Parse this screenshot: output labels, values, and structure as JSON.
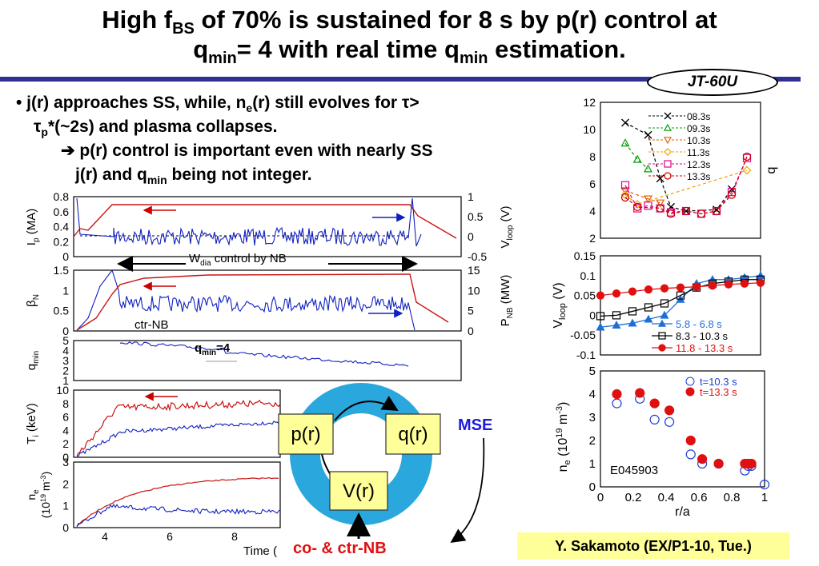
{
  "title": {
    "p1": "High f",
    "s1": "BS",
    "p2": " of 70% is sustained for 8 s by p(r) control at",
    "p3": "q",
    "s2": "min",
    "p4": "= 4 with real time q",
    "s3": "min",
    "p5": " estimation."
  },
  "badge": "JT-60U",
  "bullet": {
    "a1": "• j(r) approaches SS, while, n",
    "a2": "e",
    "a3": "(r) still evolves for τ>",
    "b1": "τ",
    "b2": "p",
    "b3": "*(~2s) and plasma collapses.",
    "c1": "➔ p(r) control is important even with nearly SS",
    "d1": "j(r) and q",
    "d2": "min",
    "d3": " being not integer."
  },
  "timetraces": {
    "wdia_label": "W",
    "wdia_sub": "dia",
    "wdia_rest": " control by NB",
    "ctr_nb": "ctr-NB",
    "qmin_annot": "q",
    "qmin_annot_sub": "min",
    "qmin_annot_rest": "=4",
    "xlabel": "Time (",
    "panels": [
      {
        "ylabel_left": "I",
        "ylabel_left_sub": "p",
        "ylabel_left_rest": " (MA)",
        "ylabel_right": "V",
        "ylabel_right_sub": "loop",
        "ylabel_right_rest": " (V)",
        "left_ticks": [
          "0.8",
          "0.6",
          "0.4",
          "0.2",
          "0"
        ],
        "right_ticks": [
          "1",
          "0.5",
          "0",
          "-0.5"
        ]
      },
      {
        "ylabel_left": "β",
        "ylabel_left_sub": "N",
        "ylabel_right": "P",
        "ylabel_right_sub": "NB",
        "ylabel_right_rest": " (MW)",
        "left_ticks": [
          "1.5",
          "1",
          "0.5",
          "0"
        ],
        "right_ticks": [
          "15",
          "10",
          "5",
          "0"
        ]
      },
      {
        "ylabel_left": "q",
        "ylabel_left_sub": "min",
        "left_ticks": [
          "5",
          "4",
          "3",
          "2",
          "1"
        ]
      },
      {
        "ylabel_left": "T",
        "ylabel_left_sub": "i",
        "ylabel_left_rest": " (keV)",
        "left_ticks": [
          "10",
          "8",
          "6",
          "4",
          "2",
          "0"
        ]
      },
      {
        "ylabel_left": "n",
        "ylabel_left_sub": "e",
        "ylabel_left_rest": " (10",
        "ylabel_left_sup": "19",
        "ylabel_left_end": " m",
        "ylabel_left_sup2": "-3",
        "ylabel_left_close": ")",
        "left_ticks": [
          "3",
          "2",
          "1",
          "0"
        ]
      }
    ],
    "x_ticks": [
      "4",
      "6",
      "8"
    ]
  },
  "diagram": {
    "p": "p(r)",
    "q": "q(r)",
    "v": "V(r)",
    "mse": "MSE",
    "nb": "co- & ctr-NB"
  },
  "credit": "Y. Sakamoto (EX/P1-10, Tue.)",
  "chart_data": [
    {
      "type": "line",
      "ylabel": "q",
      "ylim": [
        2,
        12
      ],
      "yticks": [
        "12",
        "10",
        "8",
        "6",
        "4",
        "2"
      ],
      "x": [
        0.1,
        0.18,
        0.25,
        0.33,
        0.4,
        0.5,
        0.6,
        0.7,
        0.8,
        0.9
      ],
      "series": [
        {
          "name": "08.3s",
          "color": "#000000",
          "marker": "x",
          "values": [
            10.5,
            null,
            9.6,
            6.4,
            4.3,
            4.0,
            null,
            4.1,
            5.6,
            null
          ]
        },
        {
          "name": "09.3s",
          "color": "#00a000",
          "marker": "triangle",
          "values": [
            9.0,
            7.8,
            7.1,
            null,
            null,
            null,
            null,
            null,
            null,
            null
          ]
        },
        {
          "name": "10.3s",
          "color": "#e06000",
          "marker": "triangle-down",
          "values": [
            5.5,
            null,
            4.9,
            4.6,
            null,
            null,
            null,
            null,
            null,
            null
          ]
        },
        {
          "name": "11.3s",
          "color": "#f0a000",
          "marker": "diamond",
          "values": [
            5.2,
            4.5,
            null,
            null,
            null,
            null,
            null,
            null,
            null,
            7.0
          ]
        },
        {
          "name": "12.3s",
          "color": "#e0008c",
          "marker": "square",
          "values": [
            5.9,
            4.2,
            4.4,
            4.2,
            3.9,
            4.0,
            3.8,
            4.0,
            5.4,
            7.9
          ]
        },
        {
          "name": "13.3s",
          "color": "#cc0000",
          "marker": "circle",
          "values": [
            5.0,
            4.3,
            null,
            4.2,
            3.8,
            4.0,
            3.8,
            4.0,
            5.2,
            8.0
          ]
        }
      ]
    },
    {
      "type": "line",
      "ylabel": "V",
      "ylabel_sub": "loop",
      "ylabel_rest": " (V)",
      "ylim": [
        -0.1,
        0.15
      ],
      "yticks": [
        "0.15",
        "0.1",
        "0.05",
        "0",
        "-0.05",
        "-0.1"
      ],
      "x": [
        0.0,
        0.1,
        0.2,
        0.3,
        0.4,
        0.5,
        0.6,
        0.7,
        0.8,
        0.9,
        1.0
      ],
      "series": [
        {
          "name": "5.8 - 6.8 s",
          "color": "#1e6ed8",
          "marker": "triangle",
          "values": [
            -0.03,
            -0.025,
            -0.02,
            -0.01,
            0.0,
            0.04,
            0.08,
            0.09,
            0.09,
            0.095,
            0.1
          ]
        },
        {
          "name": "8.3 - 10.3 s",
          "color": "#000000",
          "marker": "square-open",
          "values": [
            -0.002,
            0.0,
            0.01,
            0.02,
            0.03,
            0.05,
            0.07,
            0.08,
            0.085,
            0.09,
            0.09
          ]
        },
        {
          "name": "11.8 - 13.3 s",
          "color": "#e01010",
          "marker": "circle",
          "values": [
            0.05,
            0.055,
            0.06,
            0.065,
            0.068,
            0.07,
            0.072,
            0.075,
            0.078,
            0.08,
            0.082
          ]
        }
      ]
    },
    {
      "type": "scatter",
      "xlabel": "r/a",
      "ylabel": "n",
      "ylabel_sub": "e",
      "ylabel_rest": " (10",
      "ylabel_sup": "19",
      "ylabel_end": " m",
      "ylabel_sup2": "-3",
      "ylabel_close": ")",
      "xlim": [
        0,
        1
      ],
      "ylim": [
        0,
        5
      ],
      "xticks": [
        "0",
        "0.2",
        "0.4",
        "0.6",
        "0.8",
        "1"
      ],
      "yticks": [
        "5",
        "4",
        "3",
        "2",
        "1",
        "0"
      ],
      "annotation": "E045903",
      "series": [
        {
          "name": "t=10.3 s",
          "color": "#2040d0",
          "marker": "circle-open",
          "x": [
            0.1,
            0.24,
            0.33,
            0.42,
            0.55,
            0.62,
            0.72,
            0.88,
            0.9,
            0.92,
            1.0
          ],
          "y": [
            3.6,
            3.8,
            2.9,
            2.8,
            1.4,
            1.0,
            1.0,
            0.7,
            0.9,
            0.9,
            0.1
          ]
        },
        {
          "name": "t=13.3 s",
          "color": "#e01010",
          "marker": "circle",
          "x": [
            0.1,
            0.24,
            0.33,
            0.42,
            0.55,
            0.62,
            0.72,
            0.88,
            0.9,
            0.92
          ],
          "y": [
            4.0,
            4.05,
            3.6,
            3.3,
            2.0,
            1.2,
            1.0,
            1.0,
            1.0,
            1.0
          ]
        }
      ]
    }
  ]
}
